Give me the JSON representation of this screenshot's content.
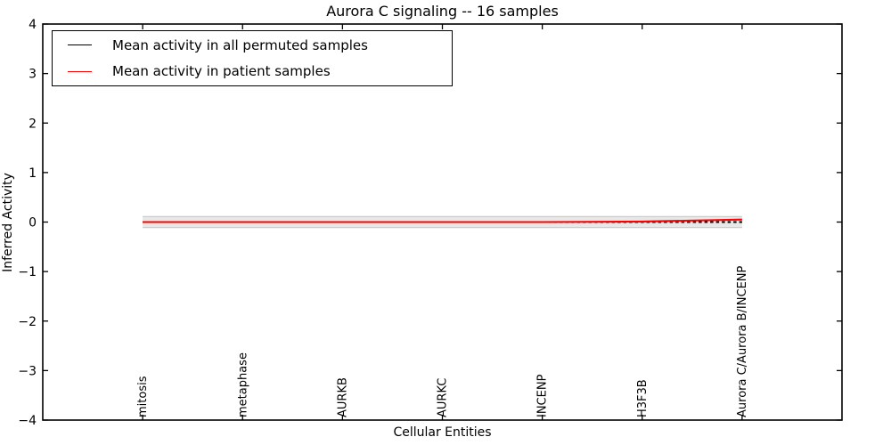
{
  "title": "Aurora C signaling -- 16 samples",
  "axes": {
    "xlabel": "Cellular Entities",
    "ylabel": "Inferred Activity"
  },
  "legend": {
    "entries": [
      {
        "label": "Mean activity in all permuted samples",
        "color": "#000000"
      },
      {
        "label": "Mean activity in patient samples",
        "color": "#ff0000"
      }
    ],
    "position": "upper left"
  },
  "chart_data": {
    "type": "line",
    "title": "Aurora C signaling -- 16 samples",
    "xlabel": "Cellular Entities",
    "ylabel": "Inferred Activity",
    "categories": [
      "mitosis",
      "metaphase",
      "AURKB",
      "AURKC",
      "INCENP",
      "H3F3B",
      "Aurora C/Aurora B/INCENP"
    ],
    "x_positions": [
      1,
      2,
      3,
      4,
      5,
      6,
      7
    ],
    "xlim": [
      0,
      8
    ],
    "ylim": [
      -4,
      4
    ],
    "yticks": [
      4,
      3,
      2,
      1,
      0,
      -1,
      -2,
      -3,
      -4
    ],
    "grid": false,
    "legend_position": "upper left",
    "series": [
      {
        "name": "Mean activity in all permuted samples",
        "color": "#000000",
        "style": "dashed",
        "values": [
          0,
          0,
          0,
          0,
          0,
          0,
          0
        ]
      },
      {
        "name": "Mean activity in patient samples",
        "color": "#ff0000",
        "style": "solid",
        "values": [
          0,
          0,
          0,
          0,
          0,
          0.01,
          0.05
        ]
      }
    ],
    "band": {
      "center": 0,
      "half_width": 0.11,
      "fill": "#e8e8e8",
      "edge": "#cccccc"
    }
  }
}
